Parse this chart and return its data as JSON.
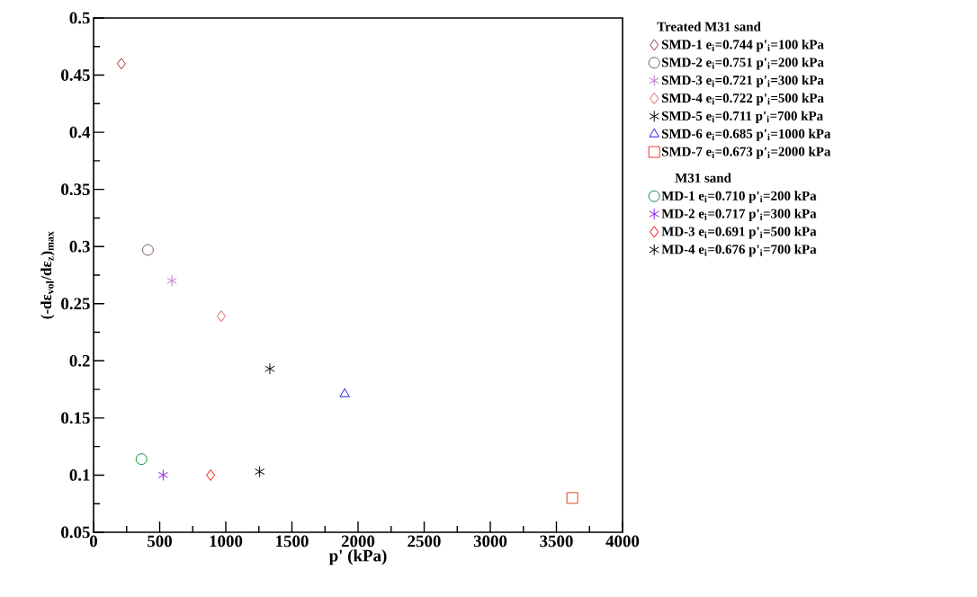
{
  "chart_data": {
    "type": "scatter",
    "xlabel": "p' (kPa)",
    "ylabel": "(-dε$_{vol}$/dε$_{z}$)$_{max}$",
    "xlim": [
      0,
      4000
    ],
    "xticks": [
      0,
      500,
      1000,
      1500,
      2000,
      2500,
      3000,
      3500,
      4000
    ],
    "ylim": [
      0.05,
      0.5
    ],
    "yticks": [
      0.05,
      0.1,
      0.15,
      0.2,
      0.25,
      0.3,
      0.35,
      0.4,
      0.45,
      0.5
    ],
    "legend": "right",
    "legend_title": "Treated M31 sand",
    "annotations": [
      "M31 sand"
    ],
    "series": [
      {
        "name": "SMD-1 e$_{i}$=0.744 p'$_{i}$=100 kPa",
        "color": "#a03030",
        "marker": "diamond",
        "x": [
          210
        ],
        "values": [
          0.46
        ]
      },
      {
        "name": "SMD-2 e$_{i}$=0.751 p'$_{i}$=200 kPa",
        "color": "#806050",
        "marker": "circle",
        "x": [
          411
        ],
        "values": [
          0.297
        ]
      },
      {
        "name": "SMD-3 e$_{i}$=0.721 p'$_{i}$=300 kPa",
        "color": "#c070d0",
        "marker": "cross",
        "x": [
          592
        ],
        "values": [
          0.27
        ]
      },
      {
        "name": "SMD-4 e$_{i}$=0.722 p'$_{i}$=500 kPa",
        "color": "#e06060",
        "marker": "diamond",
        "x": [
          966
        ],
        "values": [
          0.239
        ]
      },
      {
        "name": "SMD-5 e$_{i}$=0.711 p'$_{i}$=700 kPa",
        "color": "#000000",
        "marker": "cross",
        "x": [
          1333
        ],
        "values": [
          0.193
        ]
      },
      {
        "name": "SMD-6 e$_{i}$=0.685 p'$_{i}$=1000 kPa",
        "color": "#2020e0",
        "marker": "triangle",
        "x": [
          1899
        ],
        "values": [
          0.171
        ]
      },
      {
        "name": "SMD-7 e$_{i}$=0.673 p'$_{i}$=2000 kPa",
        "color": "#e04020",
        "marker": "square",
        "x": [
          3620
        ],
        "values": [
          0.08
        ]
      },
      {
        "name": "MD-1 e$_{i}$=0.710 p'$_{i}$=200 kPa",
        "color": "#10903a",
        "marker": "circle",
        "x": [
          362
        ],
        "values": [
          0.114
        ]
      },
      {
        "name": "MD-2 e$_{i}$=0.717 p'$_{i}$=300 kPa",
        "color": "#8a20e0",
        "marker": "cross",
        "x": [
          526
        ],
        "values": [
          0.1
        ]
      },
      {
        "name": "MD-3 e$_{i}$=0.691 p'$_{i}$=500 kPa",
        "color": "#ff0000",
        "marker": "diamond",
        "x": [
          885
        ],
        "values": [
          0.1
        ]
      },
      {
        "name": "MD-4 e$_{i}$=0.676 p'$_{i}$=700 kPa",
        "color": "#000000",
        "marker": "cross",
        "x": [
          1256
        ],
        "values": [
          0.103
        ]
      }
    ]
  }
}
